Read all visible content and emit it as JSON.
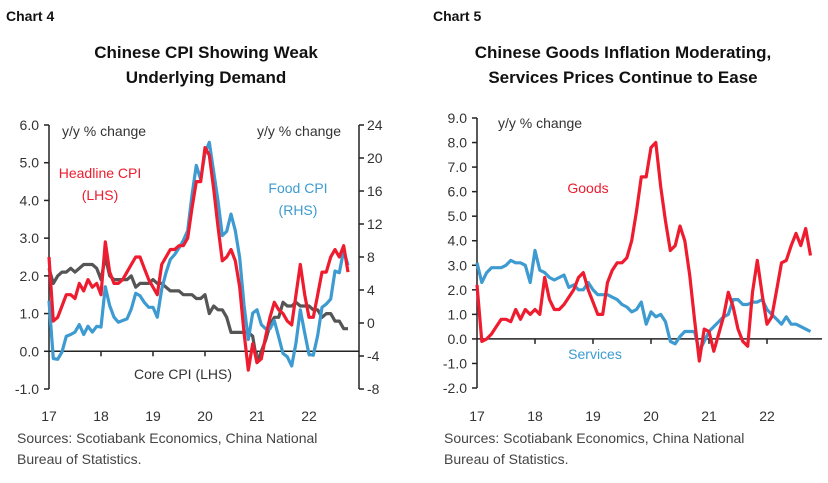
{
  "colors": {
    "red": "#ee1c2e",
    "blue": "#3d9bd1",
    "gray": "#555555",
    "axis": "#222222"
  },
  "chart_data": [
    {
      "type": "line",
      "label": "Chart 4",
      "title": [
        "Chinese CPI Showing Weak",
        "Underlying Demand"
      ],
      "ylabel_left": "y/y % change",
      "ylabel_right": "y/y % change",
      "ylim_left": [
        -1,
        6
      ],
      "yticks_left": [
        "6.0",
        "5.0",
        "4.0",
        "3.0",
        "2.0",
        "1.0",
        "0.0",
        "-1.0"
      ],
      "ylim_right": [
        -8,
        24
      ],
      "yticks_right": [
        "24",
        "20",
        "16",
        "12",
        "8",
        "4",
        "0",
        "-4",
        "-8"
      ],
      "xticks": [
        "17",
        "18",
        "19",
        "20",
        "21",
        "22"
      ],
      "x_start": "2017-01",
      "frequency": "monthly",
      "grid": false,
      "series": [
        {
          "name": "Headline CPI",
          "label_lines": [
            "Headline CPI",
            "(LHS)"
          ],
          "axis": "left",
          "color": "#ee1c2e",
          "values": [
            2.5,
            0.8,
            0.9,
            1.2,
            1.5,
            1.5,
            1.4,
            1.8,
            1.6,
            1.9,
            1.7,
            1.8,
            1.5,
            2.9,
            2.1,
            1.8,
            1.8,
            1.9,
            2.1,
            2.3,
            2.5,
            2.5,
            2.2,
            1.9,
            1.7,
            1.5,
            2.3,
            2.5,
            2.7,
            2.7,
            2.8,
            2.8,
            3.0,
            3.8,
            4.5,
            4.5,
            5.4,
            5.2,
            4.3,
            3.3,
            2.4,
            2.5,
            2.7,
            2.4,
            1.7,
            0.5,
            -0.5,
            0.2,
            -0.3,
            -0.2,
            0.4,
            0.9,
            1.3,
            1.1,
            1.0,
            0.8,
            0.7,
            1.5,
            2.3,
            1.5,
            0.9,
            0.9,
            1.5,
            2.1,
            2.1,
            2.5,
            2.7,
            2.5,
            2.8,
            2.1
          ]
        },
        {
          "name": "Food CPI",
          "label_lines": [
            "Food CPI",
            "(RHS)"
          ],
          "axis": "right",
          "color": "#3d9bd1",
          "values": [
            2.7,
            -4.3,
            -4.4,
            -3.5,
            -1.6,
            -1.4,
            -1.1,
            -0.2,
            -1.4,
            -0.4,
            -1.1,
            -0.4,
            -0.5,
            4.4,
            2.1,
            0.7,
            0.1,
            0.3,
            0.5,
            1.7,
            3.6,
            3.3,
            2.5,
            1.9,
            1.9,
            0.7,
            4.1,
            6.1,
            7.7,
            8.3,
            9.1,
            10.0,
            11.2,
            15.5,
            19.1,
            17.4,
            20.6,
            21.9,
            18.3,
            14.8,
            10.6,
            11.1,
            13.2,
            11.2,
            7.9,
            2.2,
            -2.0,
            1.2,
            1.6,
            -0.2,
            -0.7,
            -0.7,
            0.3,
            -1.7,
            -3.7,
            -4.1,
            -5.2,
            -2.4,
            1.6,
            -1.2,
            -3.8,
            -3.9,
            -1.5,
            1.9,
            2.3,
            2.9,
            6.3,
            6.1,
            8.8,
            7.0
          ]
        },
        {
          "name": "Core CPI",
          "label_lines": [
            "Core CPI (LHS)"
          ],
          "axis": "left",
          "color": "#555555",
          "values": [
            2.2,
            1.8,
            2.0,
            2.1,
            2.1,
            2.2,
            2.1,
            2.2,
            2.3,
            2.3,
            2.3,
            2.2,
            1.9,
            2.5,
            2.0,
            1.9,
            1.9,
            1.9,
            1.9,
            2.0,
            1.7,
            1.8,
            1.8,
            1.8,
            1.9,
            1.8,
            1.8,
            1.7,
            1.6,
            1.6,
            1.6,
            1.5,
            1.5,
            1.5,
            1.4,
            1.4,
            1.5,
            1.0,
            1.2,
            1.1,
            1.1,
            0.9,
            0.5,
            0.5,
            0.5,
            0.5,
            0.5,
            0.4,
            -0.3,
            0.0,
            0.3,
            0.7,
            0.9,
            0.9,
            1.3,
            1.2,
            1.2,
            1.3,
            1.2,
            1.2,
            1.2,
            1.1,
            1.1,
            0.9,
            1.0,
            1.0,
            0.8,
            0.8,
            0.6,
            0.6
          ]
        }
      ],
      "source": [
        "Sources: Scotiabank Economics, China National",
        "Bureau of Statistics."
      ]
    },
    {
      "type": "line",
      "label": "Chart 5",
      "title": [
        "Chinese Goods Inflation Moderating,",
        "Services Prices Continue to Ease"
      ],
      "ylabel_left": "y/y % change",
      "ylim_left": [
        -2,
        9
      ],
      "yticks_left": [
        "9.0",
        "8.0",
        "7.0",
        "6.0",
        "5.0",
        "4.0",
        "3.0",
        "2.0",
        "1.0",
        "0.0",
        "-1.0",
        "-2.0"
      ],
      "xticks": [
        "17",
        "18",
        "19",
        "20",
        "21",
        "22"
      ],
      "x_start": "2017-01",
      "frequency": "monthly",
      "grid": false,
      "series": [
        {
          "name": "Goods",
          "label_lines": [
            "Goods"
          ],
          "axis": "left",
          "color": "#ee1c2e",
          "values": [
            2.2,
            -0.1,
            0.0,
            0.2,
            0.5,
            0.8,
            0.8,
            0.7,
            1.2,
            0.8,
            1.2,
            1.0,
            1.2,
            1.0,
            2.5,
            1.6,
            1.2,
            1.2,
            1.4,
            1.7,
            2.0,
            2.5,
            2.7,
            2.0,
            1.5,
            1.0,
            1.0,
            2.3,
            2.8,
            3.1,
            3.1,
            3.3,
            4.0,
            5.2,
            6.6,
            6.6,
            7.8,
            8.0,
            6.2,
            4.8,
            3.6,
            3.8,
            4.6,
            4.0,
            2.6,
            0.8,
            -0.9,
            0.4,
            0.3,
            -0.5,
            0.2,
            0.9,
            1.9,
            1.3,
            0.4,
            -0.1,
            -0.3,
            1.9,
            3.2,
            1.8,
            0.6,
            0.9,
            2.0,
            3.1,
            3.2,
            3.8,
            4.3,
            3.8,
            4.5,
            3.4
          ]
        },
        {
          "name": "Services",
          "label_lines": [
            "Services"
          ],
          "axis": "left",
          "color": "#3d9bd1",
          "values": [
            3.1,
            2.3,
            2.7,
            2.9,
            2.9,
            2.9,
            3.0,
            3.2,
            3.1,
            3.1,
            3.0,
            2.3,
            3.6,
            2.8,
            2.7,
            2.5,
            2.4,
            2.5,
            2.6,
            2.1,
            2.2,
            2.0,
            2.0,
            2.3,
            2.0,
            1.8,
            1.8,
            1.8,
            1.7,
            1.6,
            1.4,
            1.3,
            1.1,
            1.2,
            1.5,
            0.6,
            1.1,
            0.9,
            1.0,
            0.7,
            -0.1,
            -0.2,
            0.1,
            0.3,
            0.3,
            0.3,
            -0.5,
            -0.1,
            0.3,
            0.5,
            0.7,
            0.9,
            1.0,
            1.6,
            1.6,
            1.4,
            1.4,
            1.5,
            1.5,
            1.6,
            1.2,
            1.0,
            0.8,
            0.6,
            0.9,
            0.6,
            0.6,
            0.5,
            0.4,
            0.3
          ]
        }
      ],
      "source": [
        "Sources: Scotiabank Economics, China National",
        "Bureau of Statistics."
      ]
    }
  ]
}
